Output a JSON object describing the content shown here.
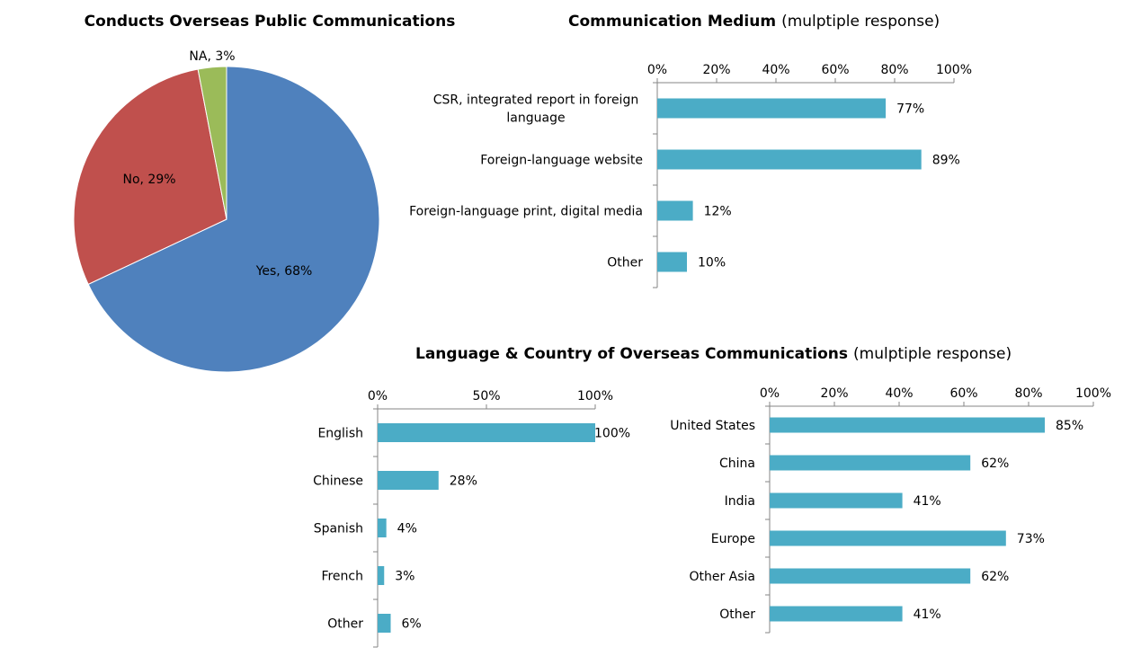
{
  "chart_data": [
    {
      "type": "pie",
      "title": "Conducts Overseas Public Communications",
      "slices": [
        {
          "label": "Yes",
          "value": 68,
          "data_label": "Yes, 68%",
          "color": "#4f81bd"
        },
        {
          "label": "No",
          "value": 29,
          "data_label": "No, 29%",
          "color": "#c0504d"
        },
        {
          "label": "NA",
          "value": 3,
          "data_label": "NA, 3%",
          "color": "#9bbb59"
        }
      ]
    },
    {
      "type": "bar",
      "orientation": "horizontal",
      "title": "Communication Medium",
      "title_suffix": "(mulptiple response)",
      "categories": [
        "CSR, integrated report in foreign language",
        "Foreign-language website",
        "Foreign-language print, digital media",
        "Other"
      ],
      "category_lines": [
        [
          "CSR, integrated report in foreign",
          "language"
        ],
        [
          "Foreign-language website"
        ],
        [
          "Foreign-language print, digital media"
        ],
        [
          "Other"
        ]
      ],
      "values": [
        77,
        89,
        12,
        10
      ],
      "value_labels": [
        "77%",
        "89%",
        "12%",
        "10%"
      ],
      "xlim": [
        0,
        100
      ],
      "ticks": [
        0,
        20,
        40,
        60,
        80,
        100
      ],
      "tick_labels": [
        "0%",
        "20%",
        "40%",
        "60%",
        "80%",
        "100%"
      ],
      "color": "#4bacc6"
    },
    {
      "type": "bar",
      "orientation": "horizontal",
      "title": "Language & Country of Overseas Communications",
      "title_suffix": "(mulptiple response)",
      "categories": [
        "English",
        "Chinese",
        "Spanish",
        "French",
        "Other"
      ],
      "values": [
        100,
        28,
        4,
        3,
        6
      ],
      "value_labels": [
        "100%",
        "28%",
        "4%",
        "3%",
        "6%"
      ],
      "xlim": [
        0,
        100
      ],
      "ticks": [
        0,
        50,
        100
      ],
      "tick_labels": [
        "0%",
        "50%",
        "100%"
      ],
      "color": "#4bacc6"
    },
    {
      "type": "bar",
      "orientation": "horizontal",
      "categories": [
        "United States",
        "China",
        "India",
        "Europe",
        "Other Asia",
        "Other"
      ],
      "values": [
        85,
        62,
        41,
        73,
        62,
        41
      ],
      "value_labels": [
        "85%",
        "62%",
        "41%",
        "73%",
        "62%",
        "41%"
      ],
      "xlim": [
        0,
        100
      ],
      "ticks": [
        0,
        20,
        40,
        60,
        80,
        100
      ],
      "tick_labels": [
        "0%",
        "20%",
        "40%",
        "60%",
        "80%",
        "100%"
      ],
      "color": "#4bacc6"
    }
  ]
}
